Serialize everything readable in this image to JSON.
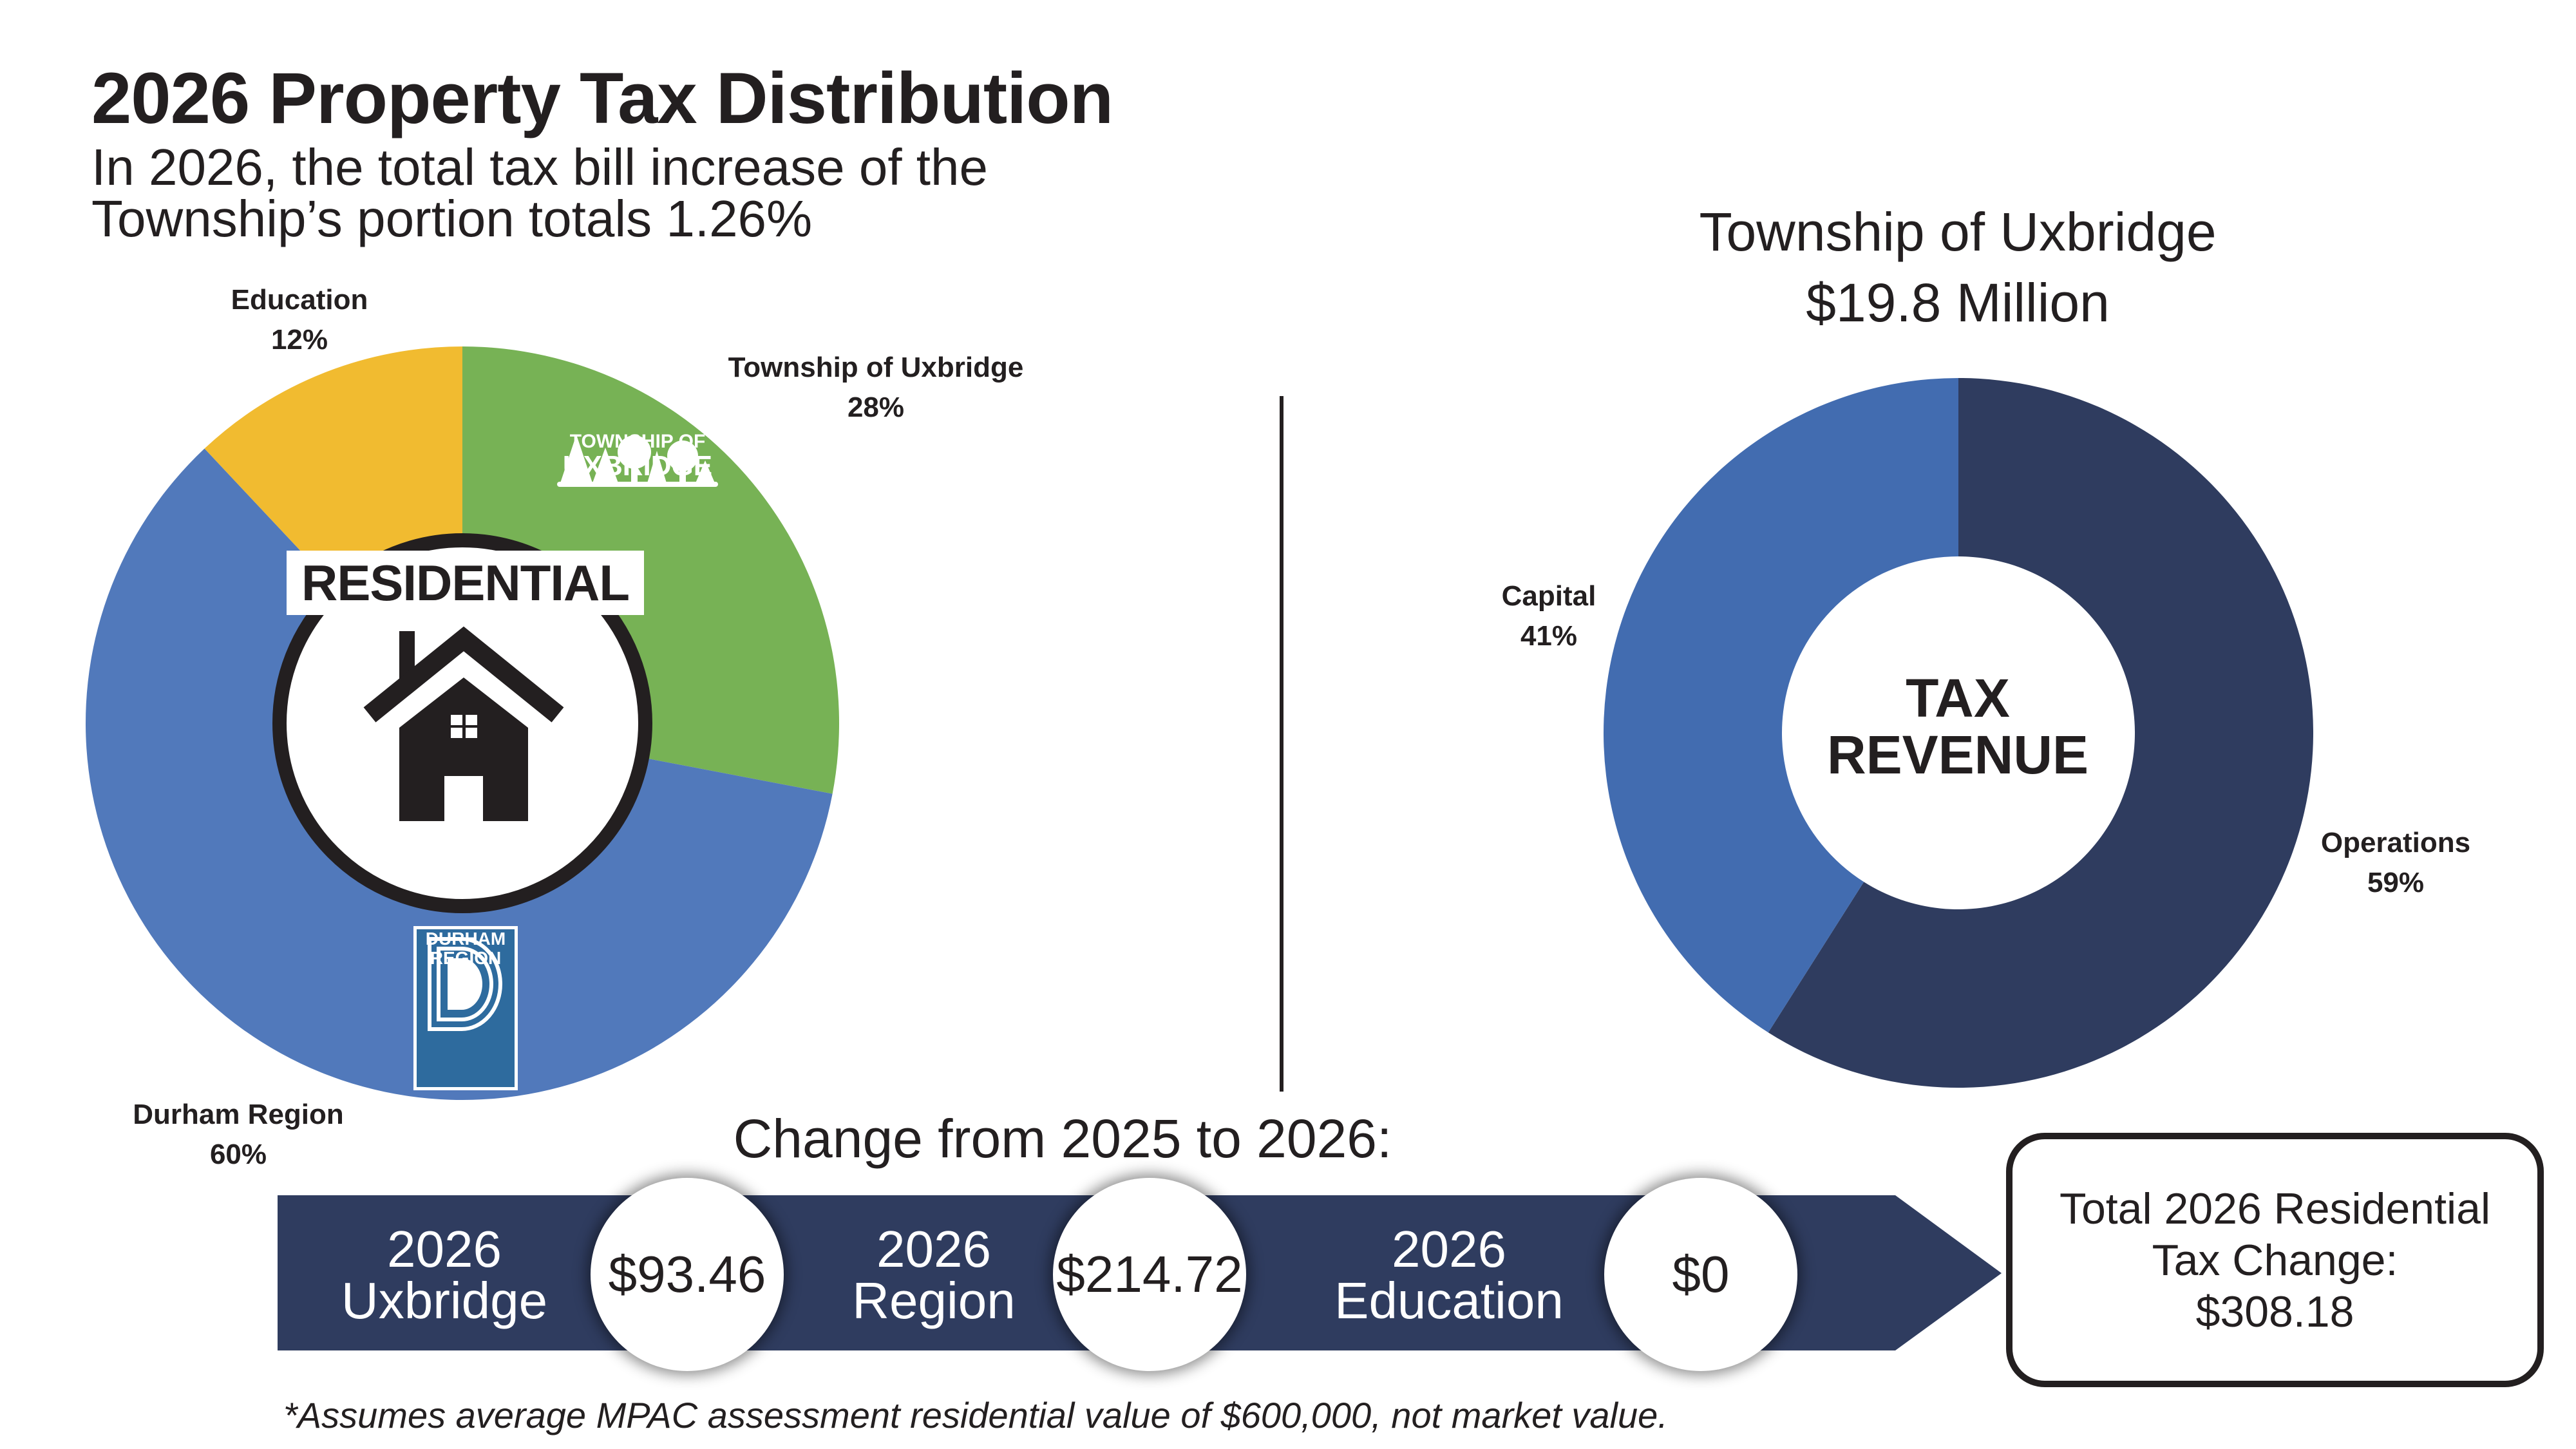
{
  "header": {
    "title": "2026 Property Tax Distribution",
    "subtitle_line1": "In 2026, the total tax bill increase of the",
    "subtitle_line2": "Township’s portion totals 1.26%"
  },
  "colors": {
    "uxbridge_green": "#77b255",
    "education_yellow": "#f1bb30",
    "durham_blue": "#5179bb",
    "capital_blue": "#426cb0",
    "operations_navy": "#2f3c5f",
    "arrow_navy": "#2f3c5f",
    "text_dark": "#231f20"
  },
  "chart_data": [
    {
      "type": "pie",
      "variant": "donut",
      "title": "RESIDENTIAL",
      "categories": [
        "Township of Uxbridge",
        "Durham Region",
        "Education"
      ],
      "values": [
        28,
        60,
        12
      ],
      "unit": "%",
      "labels": [
        {
          "name": "Township of Uxbridge",
          "value": "28%"
        },
        {
          "name": "Durham Region",
          "value": "60%"
        },
        {
          "name": "Education",
          "value": "12%"
        }
      ],
      "center_label": "RESIDENTIAL",
      "center_icon": "house-icon",
      "logos": {
        "uxbridge_line1": "TOWNSHIP OF",
        "uxbridge_line2": "UXBRIDGE",
        "durham_line1": "DURHAM",
        "durham_line2": "REGION"
      }
    },
    {
      "type": "pie",
      "variant": "donut",
      "title": "Township of Uxbridge",
      "subtitle": "$19.8 Million",
      "categories": [
        "Operations",
        "Capital"
      ],
      "values": [
        59,
        41
      ],
      "unit": "%",
      "labels": [
        {
          "name": "Operations",
          "value": "59%"
        },
        {
          "name": "Capital",
          "value": "41%"
        }
      ],
      "center_label_line1": "TAX",
      "center_label_line2": "REVENUE"
    }
  ],
  "change": {
    "title": "Change from 2025 to 2026:",
    "steps": [
      {
        "label_line1": "2026",
        "label_line2": "Uxbridge",
        "amount": "$93.46"
      },
      {
        "label_line1": "2026",
        "label_line2": "Region",
        "amount": "$214.72"
      },
      {
        "label_line1": "2026",
        "label_line2": "Education",
        "amount": "$0"
      }
    ],
    "total": {
      "line1": "Total 2026 Residential",
      "line2": "Tax Change:",
      "amount": "$308.18"
    }
  },
  "footnote": "*Assumes average MPAC assessment residential value of $600,000, not market value."
}
